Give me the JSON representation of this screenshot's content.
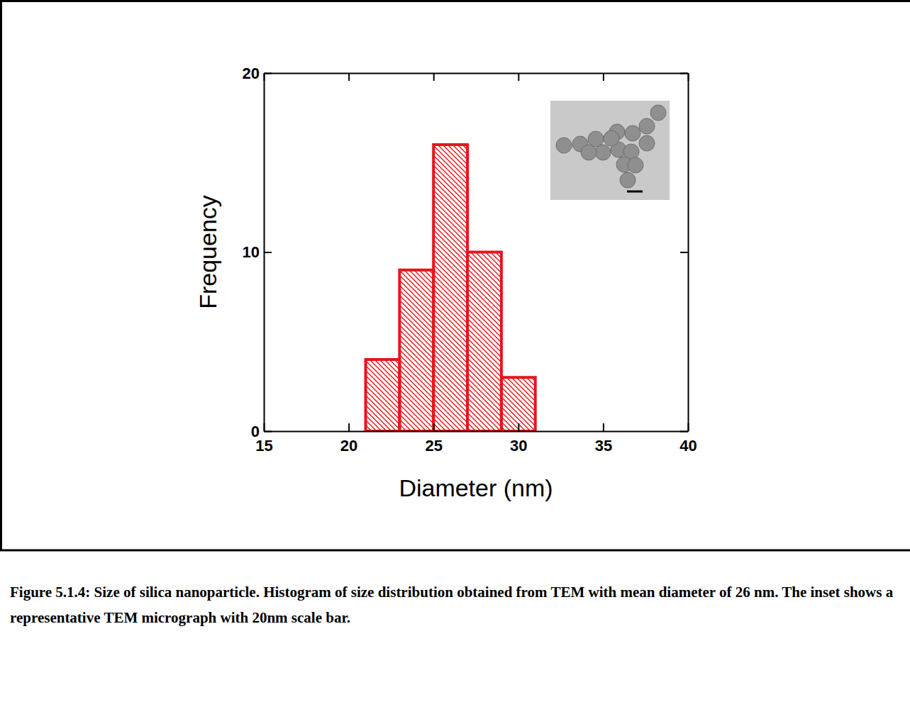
{
  "chart_data": {
    "type": "histogram",
    "bins": [
      21,
      23,
      25,
      27,
      29,
      31
    ],
    "values": [
      4,
      9,
      16,
      10,
      3
    ],
    "color": "#e8141b",
    "xlim": [
      15,
      40
    ],
    "xticks": [
      15,
      20,
      25,
      30,
      35,
      40
    ],
    "ylim": [
      0,
      20
    ],
    "yticks": [
      0,
      10,
      20
    ],
    "x_label": "Diameter (nm)",
    "y_label": "Frequency",
    "caption": "Figure 5.1.4: Size of silica nanoparticle. Histogram of size distribution obtained from TEM with mean diameter of 26 nm. The inset shows a representative TEM micrograph with 20nm scale bar."
  }
}
